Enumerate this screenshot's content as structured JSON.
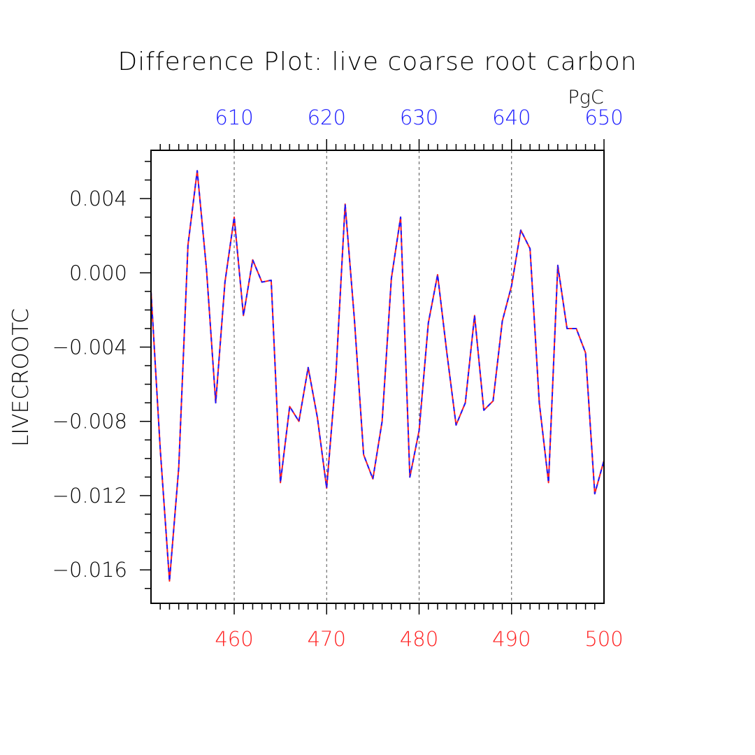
{
  "chart_data": {
    "type": "line",
    "title": "Difference Plot: live coarse root carbon",
    "ylabel": "LIVECROOTC",
    "units_label": "PgC",
    "xlim": [
      451,
      500
    ],
    "ylim": [
      -0.0178,
      0.0066
    ],
    "bottom_axis": {
      "ticks": [
        460,
        470,
        480,
        490,
        500
      ],
      "tick_labels": [
        "460",
        "470",
        "480",
        "490",
        "500"
      ],
      "color": "#ff2020"
    },
    "top_axis": {
      "ticks": [
        460,
        470,
        480,
        490,
        500
      ],
      "tick_labels": [
        "610",
        "620",
        "630",
        "640",
        "650"
      ],
      "color": "#1a1aff"
    },
    "yticks": [
      0.004,
      0.0,
      -0.004,
      -0.008,
      -0.012,
      -0.016
    ],
    "ytick_labels": [
      "0.004",
      "0.000",
      "−0.004",
      "−0.008",
      "−0.012",
      "−0.016"
    ],
    "grid": "vertical dashed at labeled x ticks",
    "x": [
      451,
      452,
      453,
      454,
      455,
      456,
      457,
      458,
      459,
      460,
      461,
      462,
      463,
      464,
      465,
      466,
      467,
      468,
      469,
      470,
      471,
      472,
      473,
      474,
      475,
      476,
      477,
      478,
      479,
      480,
      481,
      482,
      483,
      484,
      485,
      486,
      487,
      488,
      489,
      490,
      491,
      492,
      493,
      494,
      495,
      496,
      497,
      498,
      499,
      500
    ],
    "series": [
      {
        "color": "#ff2020",
        "style": "solid",
        "values": [
          -0.001,
          -0.0095,
          -0.0166,
          -0.0105,
          0.0015,
          0.0055,
          0.0002,
          -0.007,
          -0.0005,
          0.003,
          -0.0023,
          0.0007,
          -0.0005,
          -0.0004,
          -0.0113,
          -0.0072,
          -0.008,
          -0.0051,
          -0.0078,
          -0.0116,
          -0.0055,
          0.0037,
          -0.0025,
          -0.0098,
          -0.0111,
          -0.008,
          -0.0003,
          0.003,
          -0.011,
          -0.0085,
          -0.0027,
          -0.0001,
          -0.0043,
          -0.0082,
          -0.007,
          -0.0023,
          -0.0074,
          -0.0069,
          -0.0026,
          -0.0007,
          0.0023,
          0.0013,
          -0.007,
          -0.0113,
          0.0004,
          -0.003,
          -0.003,
          -0.0043,
          -0.0119,
          -0.0101
        ]
      },
      {
        "color": "#1a1aff",
        "style": "dashed",
        "values": [
          -0.001,
          -0.0095,
          -0.0166,
          -0.0105,
          0.0015,
          0.0055,
          0.0002,
          -0.007,
          -0.0005,
          0.003,
          -0.0023,
          0.0007,
          -0.0005,
          -0.0004,
          -0.0113,
          -0.0072,
          -0.008,
          -0.0051,
          -0.0078,
          -0.0116,
          -0.0055,
          0.0037,
          -0.0025,
          -0.0098,
          -0.0111,
          -0.008,
          -0.0003,
          0.003,
          -0.011,
          -0.0085,
          -0.0027,
          -0.0001,
          -0.0043,
          -0.0082,
          -0.007,
          -0.0023,
          -0.0074,
          -0.0069,
          -0.0026,
          -0.0007,
          0.0023,
          0.0013,
          -0.007,
          -0.0113,
          0.0004,
          -0.003,
          -0.003,
          -0.0043,
          -0.0119,
          -0.0101
        ]
      }
    ]
  }
}
